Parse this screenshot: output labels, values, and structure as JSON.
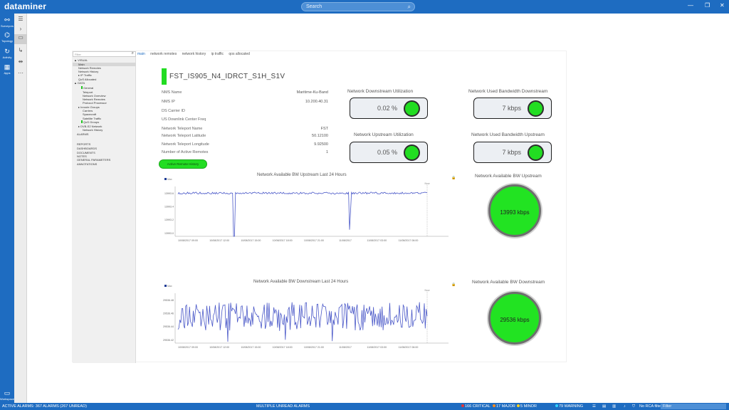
{
  "app": {
    "logo": "dataminer",
    "search_placeholder": "Search"
  },
  "rail": {
    "items": [
      {
        "label": "Surveyors",
        "icon": "surveyor-icon"
      },
      {
        "label": "Topology",
        "icon": "topology-icon"
      },
      {
        "label": "Activity",
        "icon": "activity-icon"
      },
      {
        "label": "Apps",
        "icon": "apps-icon"
      }
    ],
    "workspace_label": "Workspace"
  },
  "tree": {
    "filter_placeholder": "Filter",
    "nodes": [
      {
        "label": "▲ VISUAL",
        "indent": 1
      },
      {
        "label": "Main",
        "indent": 4,
        "selected": true
      },
      {
        "label": "Network Remotes",
        "indent": 4
      },
      {
        "label": "Network History",
        "indent": 4
      },
      {
        "label": "▸ IP Traffic",
        "indent": 4
      },
      {
        "label": "QoS Allocated",
        "indent": 4
      },
      {
        "label": "▲ DATA",
        "indent": 1
      },
      {
        "label": "General",
        "indent": 6,
        "green": true
      },
      {
        "label": "Teleport",
        "indent": 7
      },
      {
        "label": "Network Overview",
        "indent": 7
      },
      {
        "label": "Network Remotes",
        "indent": 7
      },
      {
        "label": "Protocol Processor",
        "indent": 7
      },
      {
        "label": "▸ Inroute Groups",
        "indent": 4
      },
      {
        "label": "Carriers",
        "indent": 7
      },
      {
        "label": "Spacecraft",
        "indent": 7
      },
      {
        "label": "Satellite Traffic",
        "indent": 7
      },
      {
        "label": "QoS Groups",
        "indent": 6,
        "green": true
      },
      {
        "label": "▸ DVB-S2 Network",
        "indent": 4
      },
      {
        "label": "Network History",
        "indent": 7
      },
      {
        "label": "ALARMS",
        "indent": 3
      },
      {
        "label": "REPORTS",
        "indent": 3
      },
      {
        "label": "DASHBOARDS",
        "indent": 3
      },
      {
        "label": "DOCUMENTS",
        "indent": 3
      },
      {
        "label": "NOTES",
        "indent": 3
      },
      {
        "label": "GENERAL PARAMETERS",
        "indent": 3
      },
      {
        "label": "ANNOTATIONS",
        "indent": 3
      }
    ]
  },
  "tabs": [
    "main",
    "network remotes",
    "network history",
    "ip traffic",
    "qos allocated"
  ],
  "header": {
    "title": "FST_IS905_N4_IDRCT_S1H_S1V",
    "status_color": "#22dc22"
  },
  "info": [
    {
      "label": "NMS Name",
      "value": "Maritime-Ku-Band"
    },
    {
      "label": "NMS IP",
      "value": "10.200.40.31"
    },
    {
      "label": "DS Carrier ID",
      "value": ""
    },
    {
      "label": "US Downlink Center Freq",
      "value": ""
    },
    {
      "label": "Network Teleport Name",
      "value": "FST"
    },
    {
      "label": "Network Teleport Latitude",
      "value": "50.12100"
    },
    {
      "label": "Network Teleport Longitude",
      "value": "9.92500"
    },
    {
      "label": "Number of Active Remotes",
      "value": "1"
    }
  ],
  "buttons": {
    "remote_history": "Active Remote History"
  },
  "kpis": {
    "downstream_util": {
      "label": "Network Downstream Utilization",
      "value": "0.02 %"
    },
    "upstream_util": {
      "label": "Network Upstream Utilization",
      "value": "0.05 %"
    },
    "used_bw_down": {
      "label": "Network Used Bandwidth Downstream",
      "value": "7 kbps"
    },
    "used_bw_up": {
      "label": "Network Used Bandwidth Upstream",
      "value": "7 kbps"
    }
  },
  "gauges": {
    "avail_up": {
      "label": "Network Available BW Upstream",
      "value": "13993 kbps"
    },
    "avail_down": {
      "label": "Network Available BW Downstream",
      "value": "29536 kbps"
    }
  },
  "chart_data": [
    {
      "type": "line",
      "title": "Network Available BW Upstream Last 24 Hours",
      "legend": "Max",
      "now_label": "Now",
      "y_ticks": [
        "13993.6",
        "13993.4",
        "13993.2",
        "13993.0"
      ],
      "x_ticks": [
        "10/08/2017 09:00",
        "10/08/2017 12:00",
        "10/08/2017 15:00",
        "10/08/2017 18:00",
        "10/08/2017 21:00",
        "11/08/2017",
        "11/08/2017 03:00",
        "11/08/2017 06:00"
      ],
      "ylim": [
        13992.95,
        13993.7
      ],
      "baseline": 13993.6,
      "noise": 0.015,
      "dips": [
        [
          0.225,
          13992.95
        ],
        [
          0.69,
          13993.05
        ],
        [
          0.693,
          13993.3
        ]
      ],
      "color": "#4a58c8"
    },
    {
      "type": "line",
      "title": "Network Available BW Downstream Last 24 Hours",
      "legend": "Max",
      "now_label": "Now",
      "y_ticks": [
        "29536.48",
        "29536.46",
        "29536.44",
        "29536.42"
      ],
      "x_ticks": [
        "10/08/2017 09:00",
        "10/08/2017 12:00",
        "10/08/2017 15:00",
        "10/08/2017 18:00",
        "10/08/2017 21:00",
        "11/08/2017",
        "11/08/2017 03:00",
        "11/08/2017 06:00"
      ],
      "ylim": [
        29536.415,
        29536.49
      ],
      "baseline": 29536.455,
      "noise": 0.012,
      "dips": [
        [
          0.2,
          29536.417
        ],
        [
          0.43,
          29536.42
        ],
        [
          0.62,
          29536.418
        ]
      ],
      "color": "#4a58c8"
    }
  ],
  "statusbar": {
    "active_alarms": "ACTIVE ALARMS: 367 ALARMS (267 UNREAD)",
    "multiple_unread": "MULTIPLE UNREAD ALARMS",
    "critical": "166 CRITICAL",
    "major": "17 MAJOR",
    "minor": "5 MINOR",
    "warning": "79 WARNING",
    "rca_filter": "No RCA filter",
    "filter_placeholder": "Filter",
    "colors": {
      "critical": "#e83333",
      "major": "#ff8a1e",
      "minor": "#ffd21e",
      "warning": "#2fd2ff"
    }
  }
}
